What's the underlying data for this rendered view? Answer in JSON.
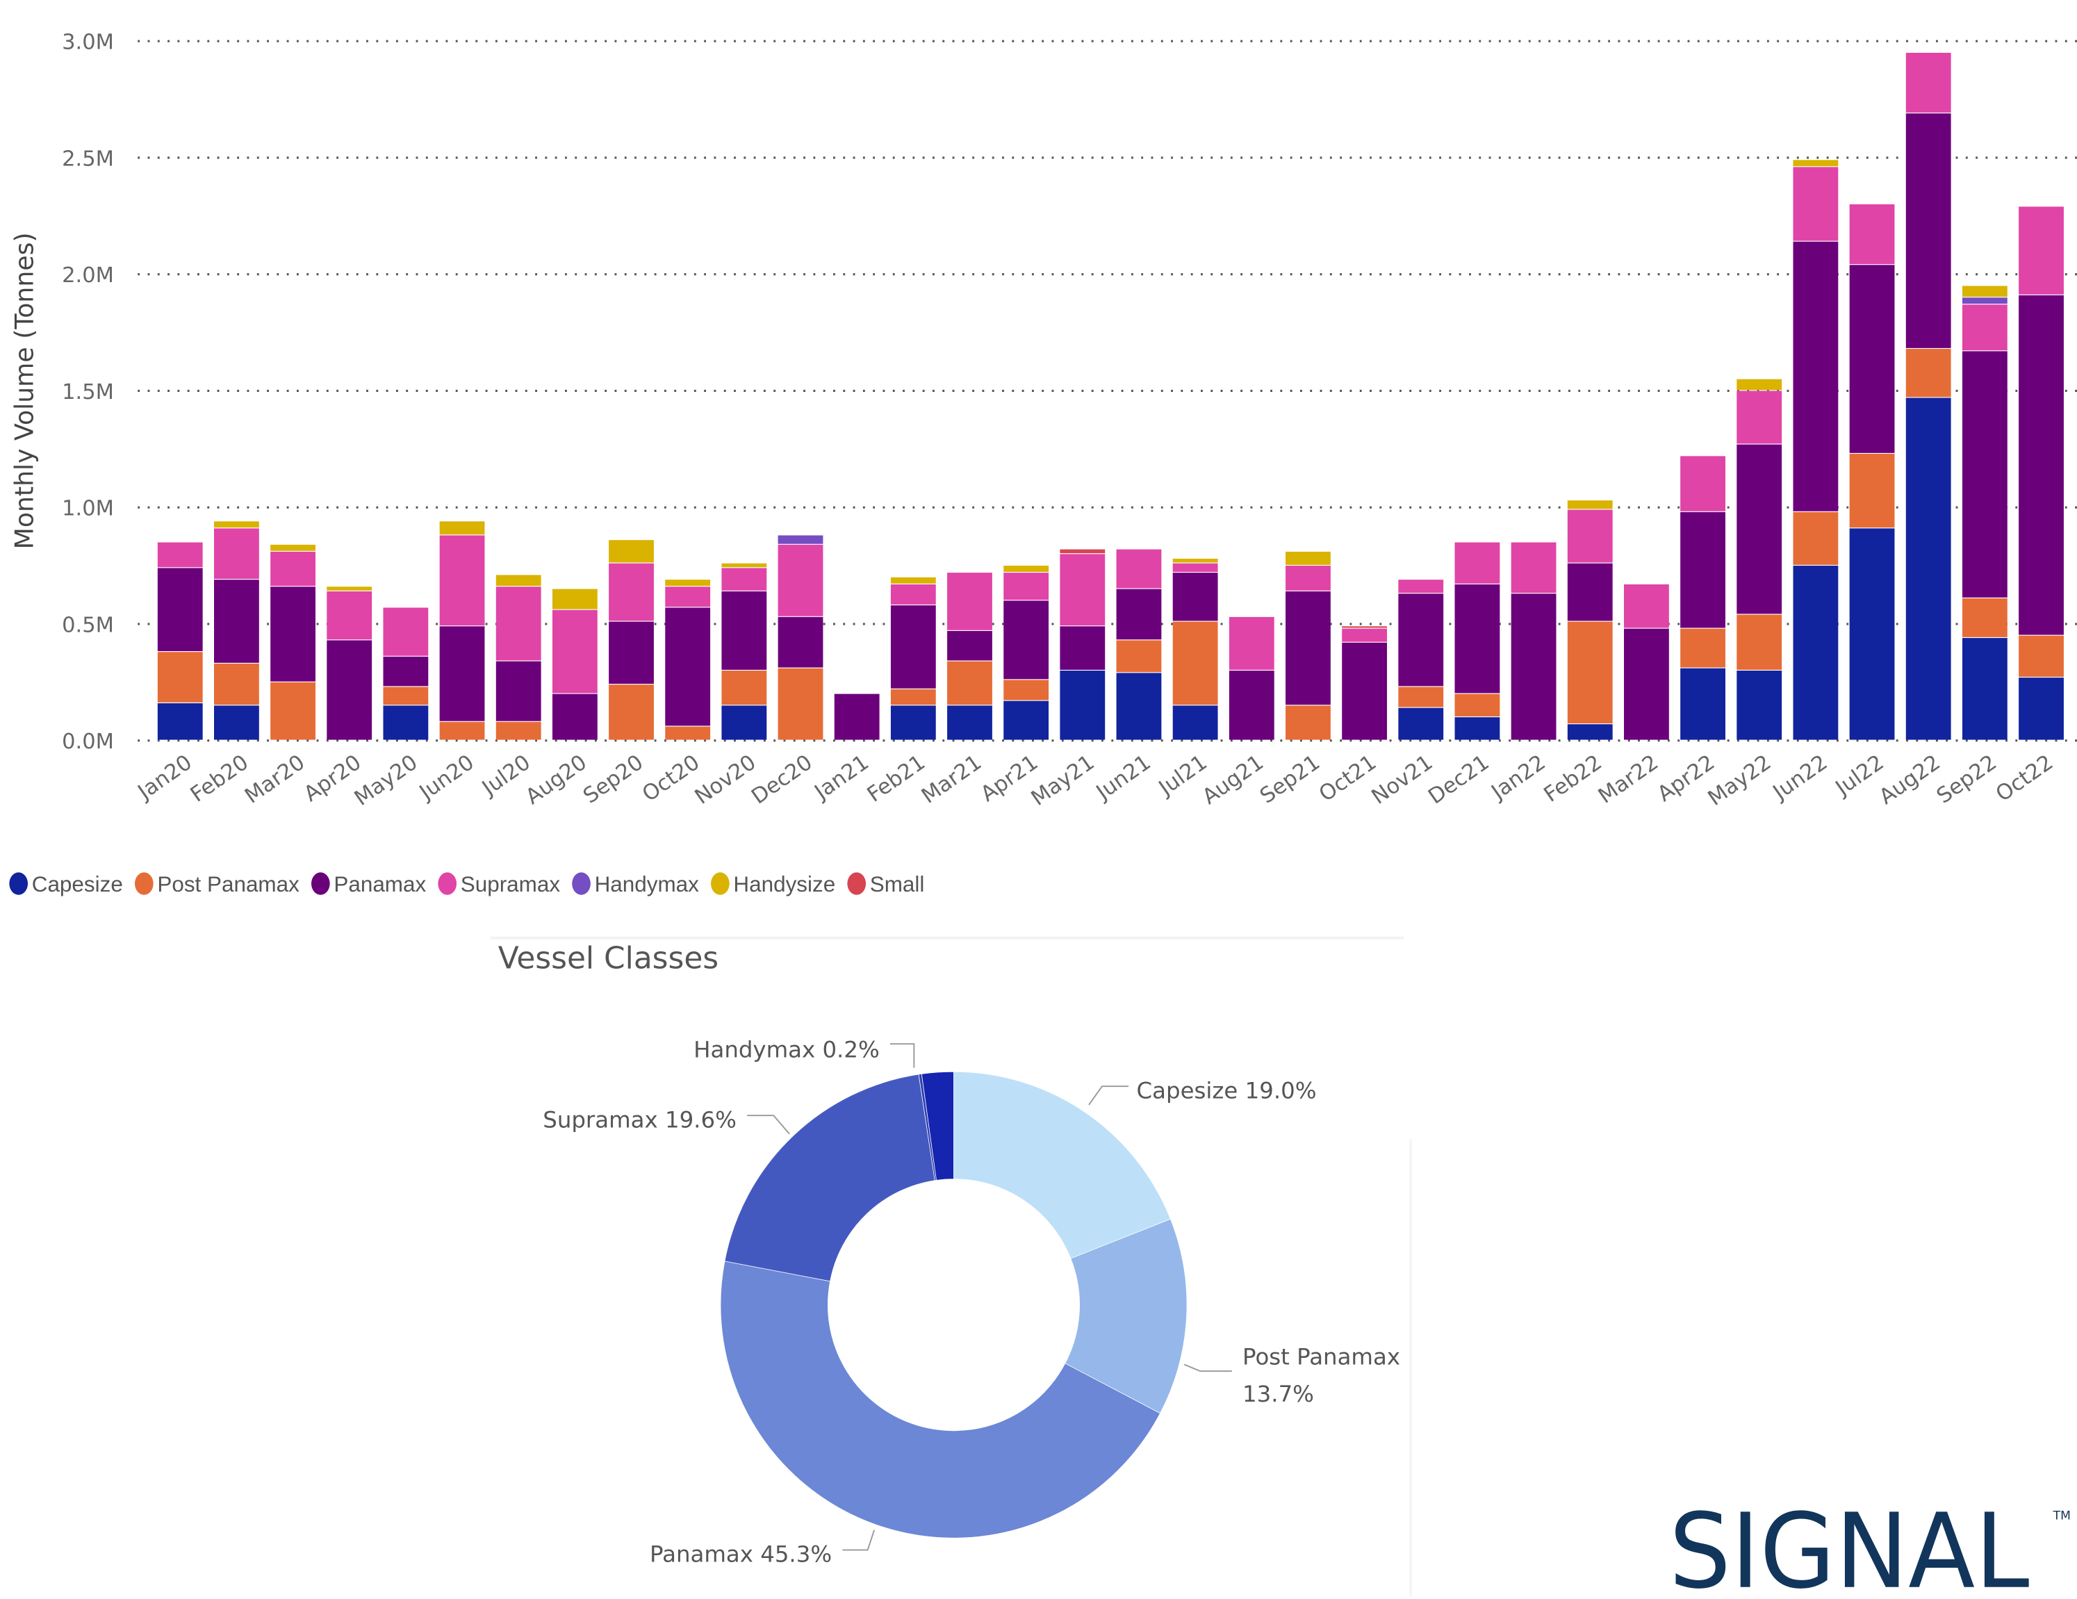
{
  "chart_data": [
    {
      "type": "bar",
      "stacked": true,
      "title": "",
      "xlabel": "",
      "ylabel": "Monthly Volume (Tonnes)",
      "ylim": [
        0,
        3.0
      ],
      "y_unit": "M tonnes",
      "y_ticks": [
        "0.0M",
        "0.5M",
        "1.0M",
        "1.5M",
        "2.0M",
        "2.5M",
        "3.0M"
      ],
      "grid": true,
      "legend_position": "bottom-left",
      "categories": [
        "Jan20",
        "Feb20",
        "Mar20",
        "Apr20",
        "May20",
        "Jun20",
        "Jul20",
        "Aug20",
        "Sep20",
        "Oct20",
        "Nov20",
        "Dec20",
        "Jan21",
        "Feb21",
        "Mar21",
        "Apr21",
        "May21",
        "Jun21",
        "Jul21",
        "Aug21",
        "Sep21",
        "Oct21",
        "Nov21",
        "Dec21",
        "Jan22",
        "Feb22",
        "Mar22",
        "Apr22",
        "May22",
        "Jun22",
        "Jul22",
        "Aug22",
        "Sep22",
        "Oct22"
      ],
      "series": [
        {
          "name": "Capesize",
          "color": "#12239E",
          "values": [
            0.16,
            0.15,
            0,
            0,
            0.15,
            0,
            0,
            0,
            0,
            0,
            0.15,
            0,
            0,
            0.15,
            0.15,
            0.17,
            0.3,
            0.29,
            0.15,
            0,
            0,
            0,
            0.14,
            0.1,
            0,
            0.07,
            0,
            0.31,
            0.3,
            0.75,
            0.91,
            1.47,
            0.44,
            0.27
          ]
        },
        {
          "name": "Post Panamax",
          "color": "#E66C37",
          "values": [
            0.22,
            0.18,
            0.25,
            0,
            0.08,
            0.08,
            0.08,
            0,
            0.24,
            0.06,
            0.15,
            0.31,
            0,
            0.07,
            0.19,
            0.09,
            0,
            0.14,
            0.36,
            0,
            0.15,
            0,
            0.09,
            0.1,
            0,
            0.44,
            0,
            0.17,
            0.24,
            0.23,
            0.32,
            0.21,
            0.17,
            0.18
          ]
        },
        {
          "name": "Panamax",
          "color": "#6B007B",
          "values": [
            0.36,
            0.36,
            0.41,
            0.43,
            0.13,
            0.41,
            0.26,
            0.2,
            0.27,
            0.51,
            0.34,
            0.22,
            0.2,
            0.36,
            0.13,
            0.34,
            0.19,
            0.22,
            0.21,
            0.3,
            0.49,
            0.42,
            0.4,
            0.47,
            0.63,
            0.25,
            0.48,
            0.5,
            0.73,
            1.16,
            0.81,
            1.01,
            1.06,
            1.46
          ]
        },
        {
          "name": "Supramax",
          "color": "#E044A7",
          "values": [
            0.11,
            0.22,
            0.15,
            0.21,
            0.21,
            0.39,
            0.32,
            0.36,
            0.25,
            0.09,
            0.1,
            0.31,
            0,
            0.09,
            0.25,
            0.12,
            0.31,
            0.17,
            0.04,
            0.23,
            0.11,
            0.06,
            0.06,
            0.18,
            0.22,
            0.23,
            0.19,
            0.24,
            0.23,
            0.32,
            0.26,
            0.26,
            0.2,
            0.38
          ]
        },
        {
          "name": "Handymax",
          "color": "#744EC2",
          "values": [
            0,
            0,
            0,
            0,
            0,
            0,
            0,
            0,
            0,
            0,
            0,
            0.04,
            0,
            0,
            0,
            0,
            0,
            0,
            0,
            0,
            0,
            0,
            0,
            0,
            0,
            0,
            0,
            0,
            0,
            0,
            0,
            0,
            0.03,
            0
          ]
        },
        {
          "name": "Handysize",
          "color": "#D9B300",
          "values": [
            0,
            0.03,
            0.03,
            0.02,
            0,
            0.06,
            0.05,
            0.09,
            0.1,
            0.03,
            0.02,
            0,
            0,
            0.03,
            0,
            0.03,
            0,
            0,
            0.02,
            0,
            0.06,
            0,
            0,
            0,
            0,
            0.04,
            0,
            0,
            0.05,
            0.03,
            0,
            0,
            0.05,
            0
          ]
        },
        {
          "name": "Small",
          "color": "#D64550",
          "values": [
            0,
            0,
            0,
            0,
            0,
            0,
            0,
            0,
            0,
            0,
            0,
            0,
            0,
            0,
            0,
            0,
            0.02,
            0,
            0,
            0,
            0,
            0.01,
            0,
            0,
            0,
            0,
            0,
            0,
            0,
            0,
            0,
            0,
            0,
            0
          ]
        }
      ]
    },
    {
      "type": "pie",
      "donut": true,
      "title": "Vessel Classes",
      "slices": [
        {
          "name": "Capesize",
          "value": 19.0,
          "label": "Capesize 19.0%",
          "color": "#BDE0F8"
        },
        {
          "name": "Post Panamax",
          "value": 13.7,
          "label": "Post Panamax",
          "label2": "13.7%",
          "color": "#96B7EA"
        },
        {
          "name": "Panamax",
          "value": 45.3,
          "label": "Panamax 45.3%",
          "color": "#6B87D6"
        },
        {
          "name": "Supramax",
          "value": 19.6,
          "label": "Supramax 19.6%",
          "color": "#4459C0"
        },
        {
          "name": "Handymax",
          "value": 0.2,
          "label": "Handymax 0.2%",
          "color": "#2E3FB0"
        },
        {
          "name": "",
          "value": 2.2,
          "label": null,
          "color": "#1525B0"
        }
      ]
    }
  ],
  "brand": {
    "logo_text": "SIGNAL",
    "trademark": "TM",
    "color": "#12355B"
  }
}
